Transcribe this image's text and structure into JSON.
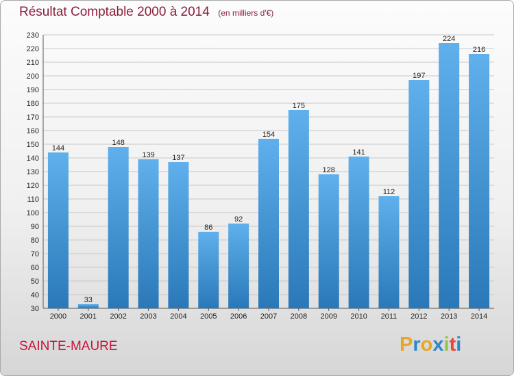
{
  "header": {
    "title": "Résultat Comptable 2000 à 2014",
    "subtitle": "(en milliers d'€)"
  },
  "footer": {
    "city": "SAINTE-MAURE",
    "logo_letters": [
      "P",
      "r",
      "o",
      "x",
      "i",
      "t",
      "i"
    ]
  },
  "colors": {
    "title": "#8a1f3c",
    "city": "#c8143c",
    "bar_top": "#5fb0ec",
    "bar_bottom": "#2a78b8",
    "logo": [
      "#e8a623",
      "#2f86c9",
      "#e8a623",
      "#2f86c9",
      "#8cc63f",
      "#e8473d",
      "#2f86c9"
    ]
  },
  "chart_data": {
    "type": "bar",
    "categories": [
      "2000",
      "2001",
      "2002",
      "2003",
      "2004",
      "2005",
      "2006",
      "2007",
      "2008",
      "2009",
      "2010",
      "2011",
      "2012",
      "2013",
      "2014"
    ],
    "values": [
      144,
      33,
      148,
      139,
      137,
      86,
      92,
      154,
      175,
      128,
      141,
      112,
      197,
      224,
      216
    ],
    "ylim": [
      30,
      230
    ],
    "yticks": [
      30,
      40,
      50,
      60,
      70,
      80,
      90,
      100,
      110,
      120,
      130,
      140,
      150,
      160,
      170,
      180,
      190,
      200,
      210,
      220,
      230
    ],
    "grid": true
  }
}
